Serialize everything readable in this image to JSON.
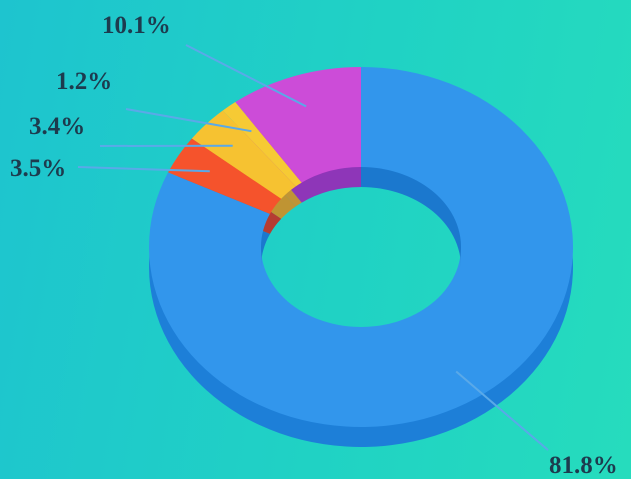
{
  "chart_data": {
    "type": "pie",
    "style": "3d-donut",
    "title": "",
    "slices": [
      {
        "value": 81.8,
        "label": "81.8%",
        "color": "#3296ec",
        "side_color": "#1d7fd8"
      },
      {
        "value": 3.5,
        "label": "3.5%",
        "color": "#f5532c",
        "side_color": "#d8361a"
      },
      {
        "value": 3.4,
        "label": "3.4%",
        "color": "#f6c231",
        "side_color": "#e5a21c"
      },
      {
        "value": 1.2,
        "label": "1.2%",
        "color": "#f6ca34",
        "side_color": "#e6a11e"
      },
      {
        "value": 10.1,
        "label": "10.1%",
        "color": "#cc4cd8",
        "side_color": "#a92fbd"
      }
    ],
    "legend": "none",
    "leader_line_color": "#5aa9e8"
  }
}
